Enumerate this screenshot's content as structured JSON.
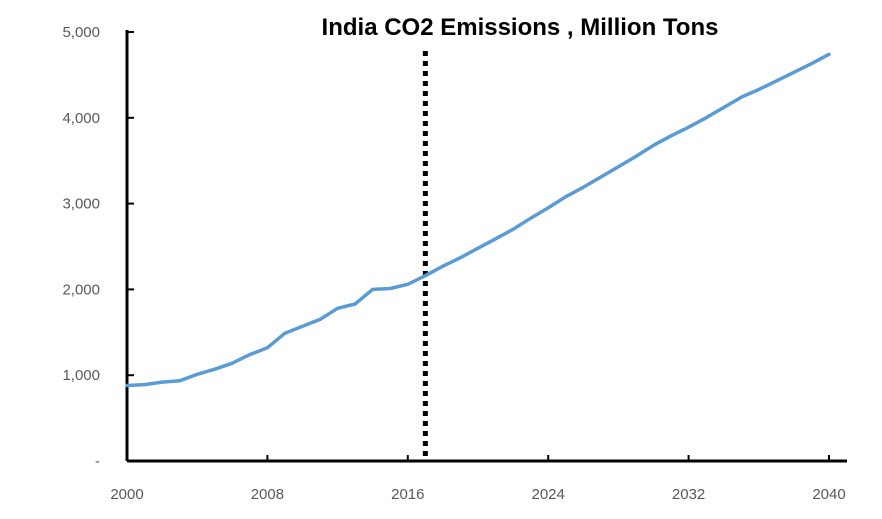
{
  "chart_data": {
    "type": "line",
    "title": "India CO2 Emissions , Million Tons",
    "xlabel": "",
    "ylabel": "",
    "xlim": [
      2000,
      2040
    ],
    "ylim": [
      0,
      5000
    ],
    "x_ticks": [
      2000,
      2008,
      2016,
      2024,
      2032,
      2040
    ],
    "x_tick_labels": [
      "2000",
      "2008",
      "2016",
      "2024",
      "2032",
      "2040"
    ],
    "y_ticks": [
      0,
      1000,
      2000,
      3000,
      4000,
      5000
    ],
    "y_tick_labels": [
      "-",
      "1,000",
      "2,000",
      "3,000",
      "4,000",
      "5,000"
    ],
    "grid": false,
    "vertical_marker": {
      "x": 2017,
      "style": "dotted",
      "color": "#000000"
    },
    "series": [
      {
        "color": "#5b9bd5",
        "points": [
          [
            2000,
            880
          ],
          [
            2001,
            890
          ],
          [
            2002,
            920
          ],
          [
            2003,
            935
          ],
          [
            2004,
            1010
          ],
          [
            2005,
            1070
          ],
          [
            2006,
            1140
          ],
          [
            2007,
            1240
          ],
          [
            2008,
            1320
          ],
          [
            2009,
            1490
          ],
          [
            2010,
            1570
          ],
          [
            2011,
            1650
          ],
          [
            2012,
            1780
          ],
          [
            2013,
            1830
          ],
          [
            2014,
            2000
          ],
          [
            2015,
            2010
          ],
          [
            2016,
            2060
          ],
          [
            2017,
            2160
          ],
          [
            2018,
            2270
          ],
          [
            2019,
            2370
          ],
          [
            2020,
            2480
          ],
          [
            2021,
            2590
          ],
          [
            2022,
            2700
          ],
          [
            2023,
            2830
          ],
          [
            2024,
            2950
          ],
          [
            2025,
            3080
          ],
          [
            2026,
            3190
          ],
          [
            2027,
            3310
          ],
          [
            2028,
            3430
          ],
          [
            2029,
            3550
          ],
          [
            2030,
            3680
          ],
          [
            2031,
            3790
          ],
          [
            2032,
            3890
          ],
          [
            2033,
            4000
          ],
          [
            2034,
            4120
          ],
          [
            2035,
            4240
          ],
          [
            2036,
            4330
          ],
          [
            2037,
            4430
          ],
          [
            2038,
            4530
          ],
          [
            2039,
            4630
          ],
          [
            2040,
            4740
          ]
        ]
      }
    ]
  }
}
